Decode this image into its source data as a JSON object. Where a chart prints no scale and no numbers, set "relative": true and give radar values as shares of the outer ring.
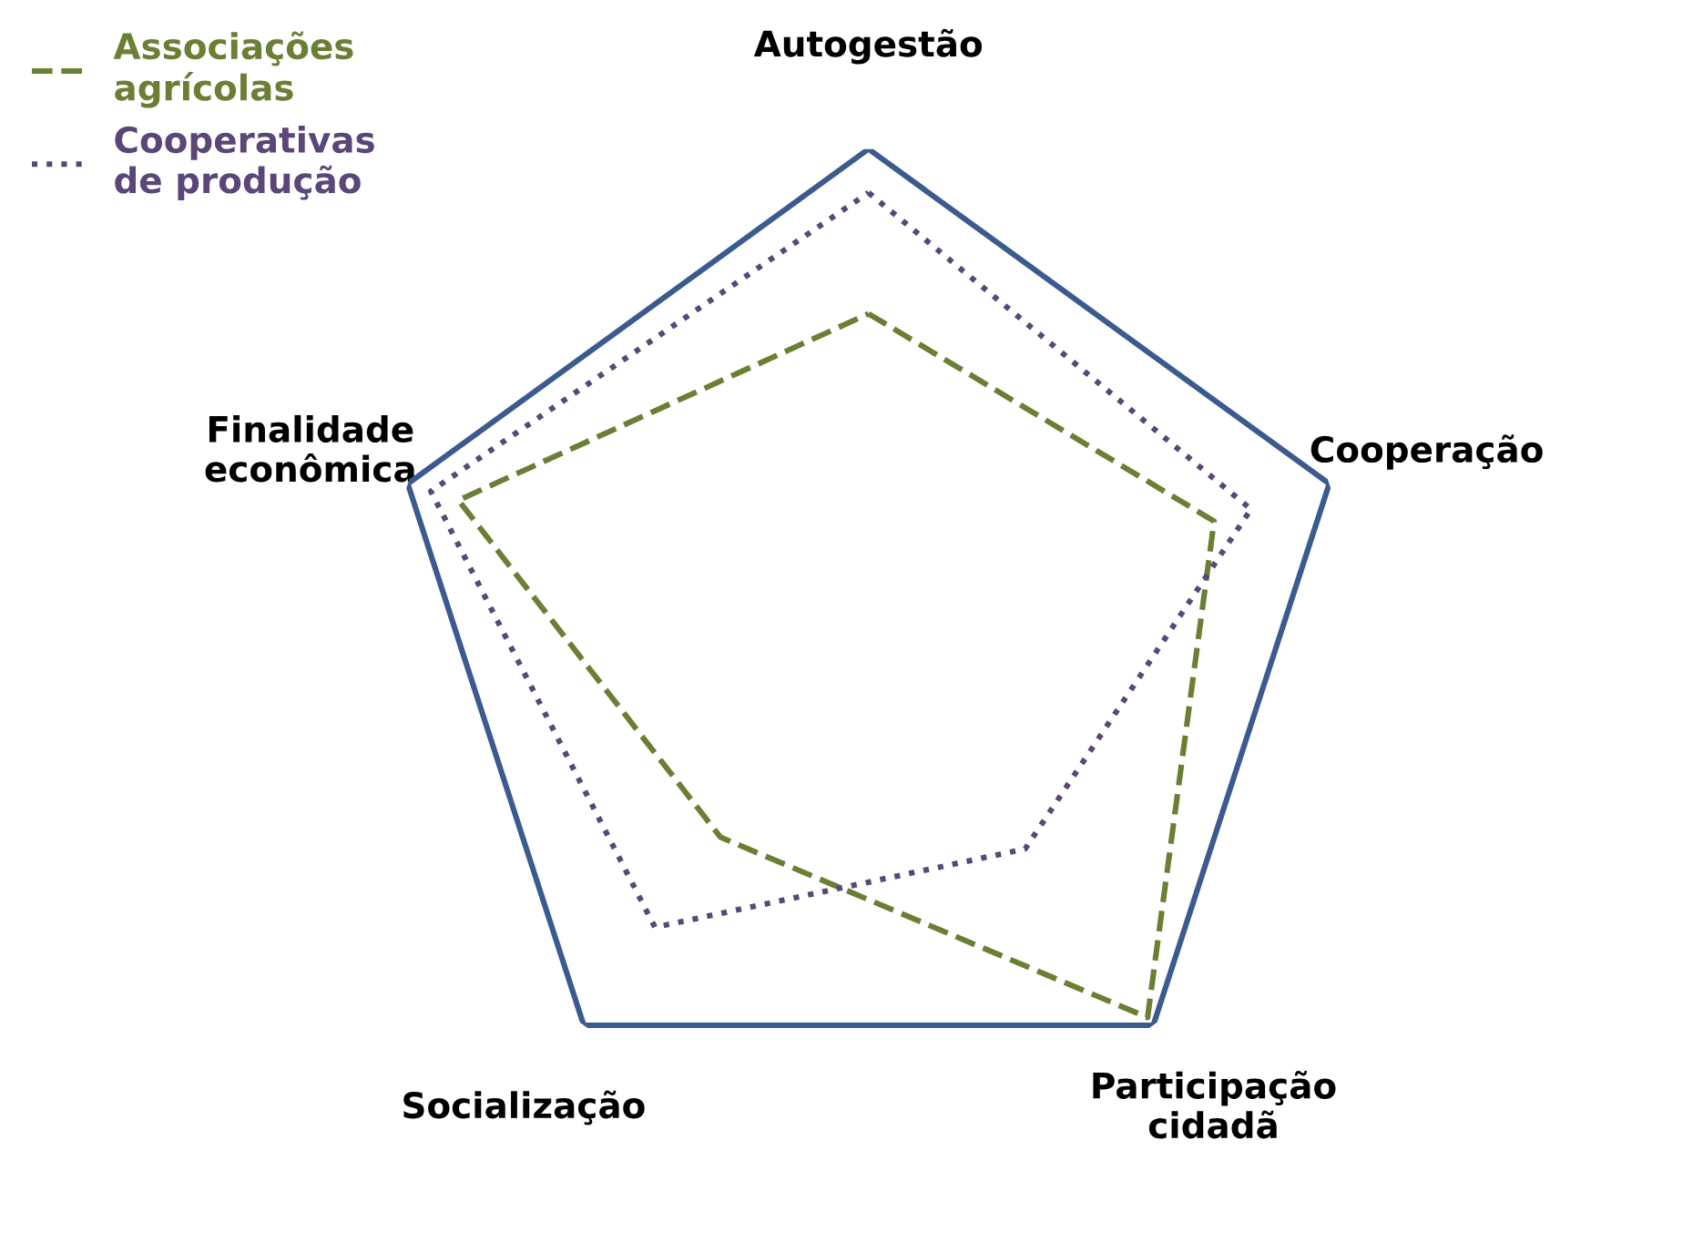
{
  "chart_data": {
    "type": "radar",
    "relative": true,
    "categories": [
      "Autogestão",
      "Cooperação",
      "Participação\ncidadã",
      "Socialização",
      "Finalidade\neconômica"
    ],
    "series": [
      {
        "name": "Associações\nagrícolas",
        "color": "#6b7f34",
        "line_style": "dashed",
        "values": [
          0.66,
          0.75,
          0.98,
          0.52,
          0.89
        ]
      },
      {
        "name": "Cooperativas\nde produção",
        "color": "#5a4678",
        "line_style": "dotted",
        "values": [
          0.91,
          0.83,
          0.55,
          0.75,
          0.95
        ]
      }
    ],
    "grid": false,
    "legend": "top left"
  }
}
